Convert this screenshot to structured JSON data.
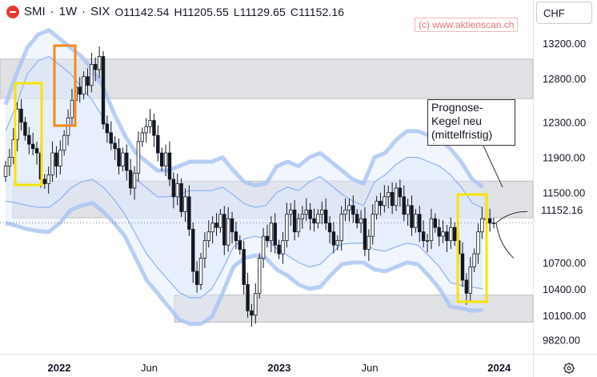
{
  "header": {
    "symbol": "SMI",
    "interval": "1W",
    "exchange": "SIX",
    "open": "O11142.54",
    "high": "H11205.55",
    "low": "L11129.65",
    "close": "C11152.16",
    "sep": "·"
  },
  "currency_label": "CHF",
  "watermark": "(c) www.aktienscan.ch",
  "callout_lines": [
    "Prognose-",
    "Kegel neu",
    "(mittelfristig)"
  ],
  "last_price_label": "11152.16",
  "icons": {
    "logo": "six-logo-icon",
    "settings": "gear-icon"
  },
  "colors": {
    "up_candle": "#ffffff",
    "candle_outline": "#131722",
    "band_outer": "#a9c3f3",
    "band_inner": "#8cb0f0",
    "band_fill": "#dfe9fb",
    "zone_gray": "#c7c9cf",
    "yellow_box": "#f7e400",
    "orange_box": "#f08a1c"
  },
  "chart_data": {
    "type": "candlestick",
    "y_axis": {
      "ticks": [
        13200,
        12800,
        12300,
        11900,
        11500,
        10700,
        10400,
        10100,
        9820
      ],
      "range": [
        9660,
        13420
      ]
    },
    "x_axis": {
      "ticks": [
        {
          "label": "2022",
          "date": "2022-01-03"
        },
        {
          "label": "Jun",
          "date": "2022-06-01"
        },
        {
          "label": "2023",
          "date": "2023-01-02"
        },
        {
          "label": "Jun",
          "date": "2023-06-01"
        },
        {
          "label": "2024",
          "date": "2024-01-01"
        }
      ],
      "range": [
        "2021-09-27",
        "2024-02-26"
      ]
    },
    "closes": [
      11800,
      11900,
      12100,
      12450,
      12300,
      12150,
      12050,
      12000,
      11950,
      11650,
      11600,
      11700,
      11950,
      11800,
      11980,
      12150,
      12350,
      12550,
      12700,
      12620,
      12820,
      12720,
      12960,
      12900,
      13050,
      12280,
      12180,
      12060,
      12000,
      11800,
      11950,
      11750,
      11550,
      11720,
      12080,
      12180,
      12250,
      12320,
      12150,
      11950,
      11800,
      11950,
      11650,
      11450,
      11600,
      11280,
      11450,
      11080,
      10600,
      10450,
      10750,
      10950,
      11050,
      11150,
      11100,
      11250,
      10900,
      11200,
      11050,
      10950,
      10850,
      10450,
      10150,
      10100,
      10350,
      10750,
      11000,
      10950,
      11150,
      10900,
      10800,
      10950,
      11250,
      11300,
      11050,
      11200,
      11250,
      11300,
      11200,
      11150,
      11250,
      11300,
      11150,
      11050,
      10900,
      10950,
      11250,
      11300,
      11350,
      11250,
      11150,
      11200,
      10850,
      11000,
      11250,
      11400,
      11350,
      11450,
      11500,
      11350,
      11550,
      11450,
      11250,
      11350,
      11100,
      11250,
      11050,
      10950,
      10950,
      11200,
      11100,
      11000,
      11050,
      10950,
      11100,
      10950,
      10800,
      10500,
      10350,
      10650,
      10800,
      11050,
      11200,
      11200,
      11150,
      11152.16
    ],
    "bollinger_bands": {
      "outer_upper": [
        12500,
        12850,
        13150,
        13300,
        13350,
        13250,
        13150,
        13050,
        12900,
        12700,
        12400,
        12150,
        11950,
        11850,
        11750,
        11750,
        11800,
        11850,
        11850,
        11850,
        11900,
        11750,
        11620,
        11580,
        11600,
        11800,
        11850,
        11800,
        11900,
        11950,
        11850,
        11750,
        11650,
        11600,
        11900,
        11950,
        12100,
        12200,
        12200,
        12150,
        12100,
        12000,
        11850,
        11650,
        11560
      ],
      "outer_lower": [
        11150,
        11120,
        11080,
        11060,
        11050,
        11150,
        11300,
        11350,
        11380,
        11280,
        11150,
        11000,
        10750,
        10500,
        10350,
        10200,
        10050,
        10000,
        10000,
        10080,
        10350,
        10650,
        10750,
        10780,
        10750,
        10620,
        10550,
        10450,
        10400,
        10420,
        10560,
        10680,
        10700,
        10700,
        10620,
        10600,
        10650,
        10700,
        10680,
        10550,
        10400,
        10200,
        10180,
        10150,
        10160
      ],
      "inner_upper": [
        12200,
        12500,
        12850,
        13000,
        13050,
        12950,
        12850,
        12700,
        12550,
        12350,
        12050,
        11800,
        11650,
        11550,
        11450,
        11450,
        11480,
        11520,
        11520,
        11520,
        11560,
        11470,
        11370,
        11330,
        11350,
        11500,
        11560,
        11520,
        11620,
        11680,
        11580,
        11480,
        11400,
        11350,
        11620,
        11700,
        11820,
        11900,
        11900,
        11850,
        11800,
        11700,
        11560,
        11380,
        11320
      ],
      "inner_lower": [
        11400,
        11380,
        11350,
        11330,
        11330,
        11420,
        11550,
        11620,
        11650,
        11560,
        11420,
        11250,
        11020,
        10800,
        10640,
        10500,
        10360,
        10300,
        10300,
        10400,
        10620,
        10880,
        10970,
        11000,
        10970,
        10860,
        10780,
        10700,
        10650,
        10680,
        10800,
        10910,
        10920,
        10920,
        10850,
        10830,
        10880,
        10920,
        10900,
        10780,
        10650,
        10470,
        10440,
        10420,
        10400
      ]
    },
    "zones": [
      {
        "from": 12570,
        "to": 13020
      },
      {
        "from": 11210,
        "to": 11630
      },
      {
        "from": 10020,
        "to": 10330
      }
    ],
    "forecast_cone": {
      "start": 11152.16,
      "upper_end": 11280,
      "lower_end": 10750
    }
  }
}
